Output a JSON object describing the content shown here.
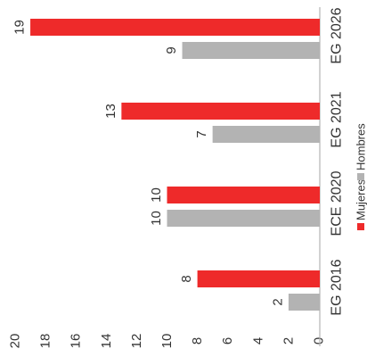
{
  "chart_data": {
    "type": "bar",
    "orientation": "horizontal",
    "rotation": "rotated 90 degrees counter-clockwise",
    "categories": [
      "EG 2016",
      "ECE 2020",
      "EG 2021",
      "EG 2026"
    ],
    "series": [
      {
        "name": "Mujeres",
        "color": "#ee2a2a",
        "values": [
          8,
          10,
          13,
          19
        ]
      },
      {
        "name": "Hombres",
        "color": "#b3b3b3",
        "values": [
          2,
          10,
          7,
          9
        ]
      }
    ],
    "value_axis": {
      "min": 0,
      "max": 20,
      "ticks": [
        0,
        2,
        4,
        6,
        8,
        10,
        12,
        14,
        16,
        18,
        20
      ]
    },
    "legend": {
      "position": "bottom",
      "items": [
        "Mujeres",
        "Hombres"
      ]
    },
    "data_labels": true,
    "grid": false
  }
}
